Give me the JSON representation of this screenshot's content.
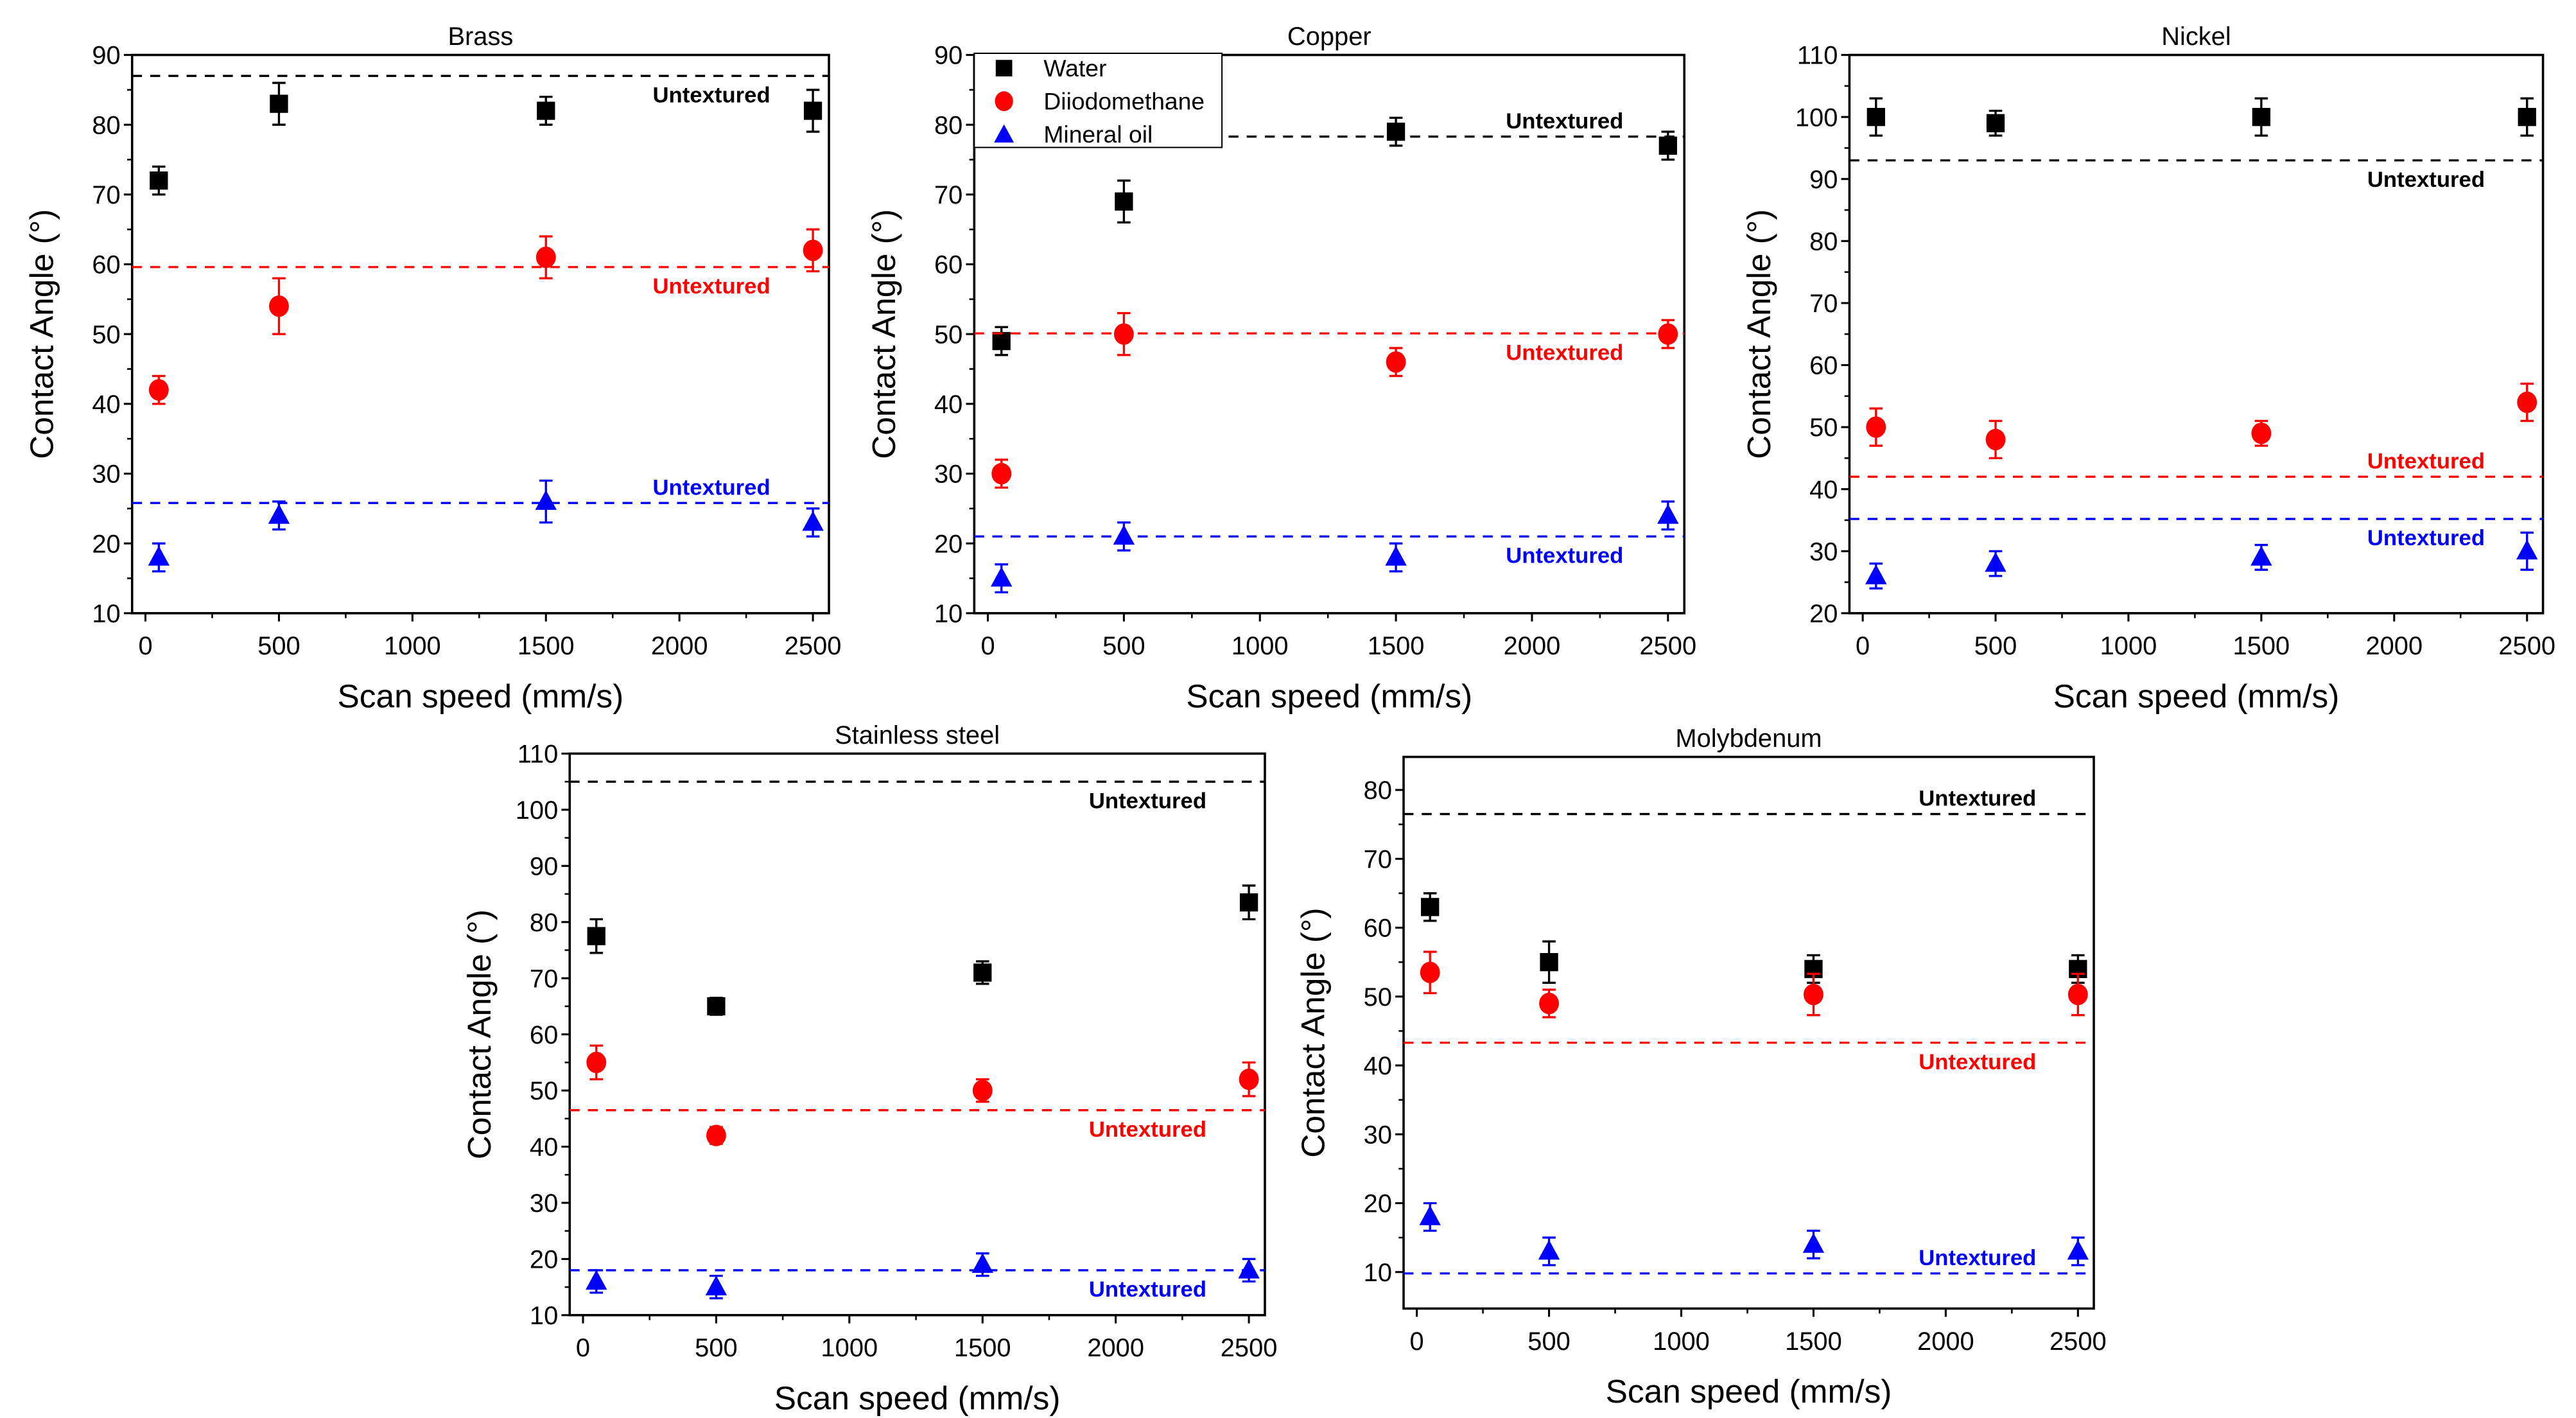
{
  "chart_data": [
    {
      "type": "scatter",
      "title": "Brass",
      "xlabel": "Scan speed (mm/s)",
      "ylabel": "Contact Angle (°)",
      "xlim": [
        -50,
        2560
      ],
      "ylim": [
        10,
        90
      ],
      "yticks": [
        10,
        20,
        30,
        40,
        50,
        60,
        70,
        80,
        90
      ],
      "xticks": [
        0,
        500,
        1000,
        1500,
        2000,
        2500
      ],
      "x": [
        50,
        500,
        1500,
        2500
      ],
      "series": [
        {
          "name": "Water",
          "values": [
            72,
            83,
            82,
            82
          ],
          "errors": [
            2,
            3,
            2,
            3
          ],
          "untextured": 87,
          "label_side": "below"
        },
        {
          "name": "Diiodomethane",
          "values": [
            42,
            54,
            61,
            62
          ],
          "errors": [
            2,
            4,
            3,
            3
          ],
          "untextured": 59.6,
          "label_side": "below"
        },
        {
          "name": "Mineral oil",
          "values": [
            18,
            24,
            26,
            23
          ],
          "errors": [
            2,
            2,
            3,
            2
          ],
          "untextured": 25.8,
          "label_side": "above"
        }
      ]
    },
    {
      "type": "scatter",
      "title": "Copper",
      "xlabel": "Scan speed (mm/s)",
      "ylabel": "Contact Angle (°)",
      "xlim": [
        -50,
        2560
      ],
      "ylim": [
        10,
        90
      ],
      "yticks": [
        10,
        20,
        30,
        40,
        50,
        60,
        70,
        80,
        90
      ],
      "xticks": [
        0,
        500,
        1000,
        1500,
        2000,
        2500
      ],
      "x": [
        50,
        500,
        1500,
        2500
      ],
      "legend": "top-left",
      "series": [
        {
          "name": "Water",
          "values": [
            49,
            69,
            79,
            77
          ],
          "errors": [
            2,
            3,
            2,
            2
          ],
          "untextured": 78.3,
          "label_side": "above"
        },
        {
          "name": "Diiodomethane",
          "values": [
            30,
            50,
            46,
            50
          ],
          "errors": [
            2,
            3,
            2,
            2
          ],
          "untextured": 50.1,
          "label_side": "below"
        },
        {
          "name": "Mineral oil",
          "values": [
            15,
            21,
            18,
            24
          ],
          "errors": [
            2,
            2,
            2,
            2
          ],
          "untextured": 21,
          "label_side": "below"
        }
      ]
    },
    {
      "type": "scatter",
      "title": "Nickel",
      "xlabel": "Scan speed (mm/s)",
      "ylabel": "Contact Angle (°)",
      "xlim": [
        -50,
        2560
      ],
      "ylim": [
        20,
        110
      ],
      "yticks": [
        20,
        30,
        40,
        50,
        60,
        70,
        80,
        90,
        100,
        110
      ],
      "xticks": [
        0,
        500,
        1000,
        1500,
        2000,
        2500
      ],
      "x": [
        50,
        500,
        1500,
        2500
      ],
      "series": [
        {
          "name": "Water",
          "values": [
            100,
            99,
            100,
            100
          ],
          "errors": [
            3,
            2,
            3,
            3
          ],
          "untextured": 93,
          "label_side": "below"
        },
        {
          "name": "Diiodomethane",
          "values": [
            50,
            48,
            49,
            54
          ],
          "errors": [
            3,
            3,
            2,
            3
          ],
          "untextured": 42,
          "label_side": "above"
        },
        {
          "name": "Mineral oil",
          "values": [
            26,
            28,
            29,
            30
          ],
          "errors": [
            2,
            2,
            2,
            3
          ],
          "untextured": 35.2,
          "label_side": "below"
        }
      ]
    },
    {
      "type": "scatter",
      "title": "Stainless steel",
      "xlabel": "Scan speed (mm/s)",
      "ylabel": "Contact Angle (°)",
      "xlim": [
        -50,
        2560
      ],
      "ylim": [
        10,
        110
      ],
      "yticks": [
        10,
        20,
        30,
        40,
        50,
        60,
        70,
        80,
        90,
        100,
        110
      ],
      "xticks": [
        0,
        500,
        1000,
        1500,
        2000,
        2500
      ],
      "x": [
        50,
        500,
        1500,
        2500
      ],
      "series": [
        {
          "name": "Water",
          "values": [
            77.5,
            65,
            71,
            83.5
          ],
          "errors": [
            3,
            1.5,
            2,
            3
          ],
          "untextured": 105,
          "label_side": "below"
        },
        {
          "name": "Diiodomethane",
          "values": [
            55,
            42,
            50,
            52
          ],
          "errors": [
            3,
            1.5,
            2,
            3
          ],
          "untextured": 46.5,
          "label_side": "below"
        },
        {
          "name": "Mineral oil",
          "values": [
            16,
            15,
            19,
            18
          ],
          "errors": [
            2,
            2,
            2,
            2
          ],
          "untextured": 18,
          "label_side": "below"
        }
      ]
    },
    {
      "type": "scatter",
      "title": "Molybdenum",
      "xlabel": "Scan speed (mm/s)",
      "ylabel": "Contact Angle (°)",
      "xlim": [
        -50,
        2560
      ],
      "ylim": [
        4.7,
        84.8
      ],
      "yticks": [
        10,
        20,
        30,
        40,
        50,
        60,
        70,
        80
      ],
      "xticks": [
        0,
        500,
        1000,
        1500,
        2000,
        2500
      ],
      "x": [
        50,
        500,
        1500,
        2500
      ],
      "series": [
        {
          "name": "Water",
          "values": [
            63,
            55,
            54,
            54
          ],
          "errors": [
            2,
            3,
            2,
            2
          ],
          "untextured": 76.5,
          "label_side": "above"
        },
        {
          "name": "Diiodomethane",
          "values": [
            53.5,
            49,
            50.3,
            50.3
          ],
          "errors": [
            3,
            2,
            3,
            3
          ],
          "untextured": 43.3,
          "label_side": "below"
        },
        {
          "name": "Mineral oil",
          "values": [
            18,
            13,
            14,
            13
          ],
          "errors": [
            2,
            2,
            2,
            2
          ],
          "untextured": 9.8,
          "label_side": "above"
        }
      ]
    }
  ],
  "untextured_label": "Untextured",
  "legend": {
    "items": [
      "Water",
      "Diiodomethane",
      "Mineral oil"
    ]
  },
  "colors": {
    "Water": "#000000",
    "Diiodomethane": "#ff0000",
    "Mineral oil": "#0000ff"
  },
  "markers": {
    "Water": "square",
    "Diiodomethane": "circle",
    "Mineral oil": "triangle"
  }
}
